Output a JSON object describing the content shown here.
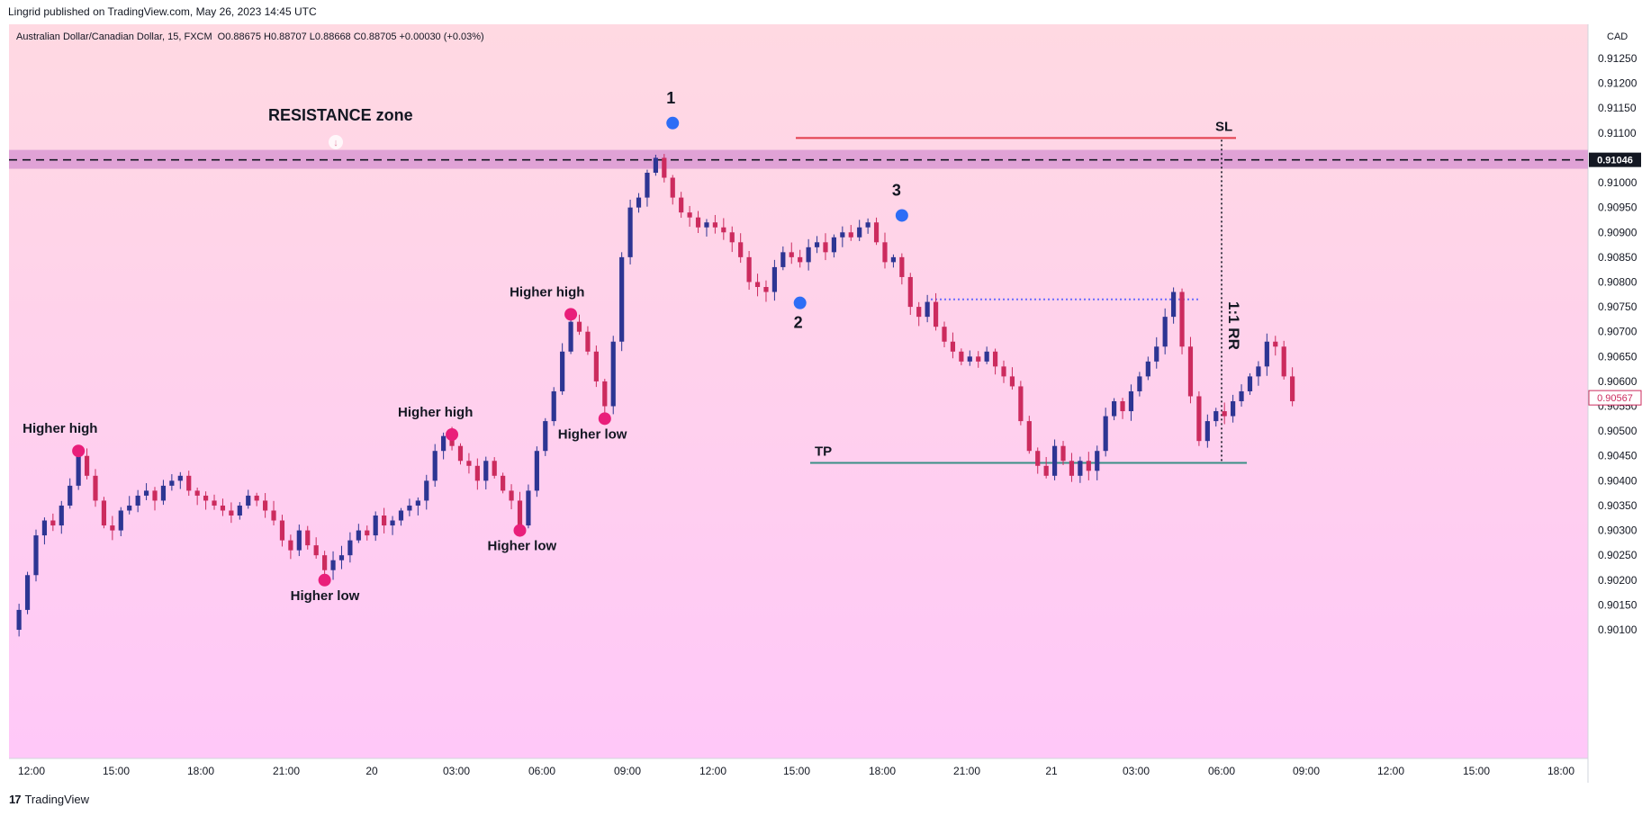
{
  "header": {
    "published": "Lingrid published on TradingView.com, May 26, 2023 14:45 UTC",
    "symbol": "Australian Dollar/Canadian Dollar, 15, FXCM",
    "ohlc": "O0.88675 H0.88707 L0.88668 C0.88705 +0.00030 (+0.03%)"
  },
  "footer": {
    "brand": "TradingView",
    "logo": "17"
  },
  "colors": {
    "up": "#2d3593",
    "down": "#cc2b5e",
    "zone": "#c778c8",
    "sl": "#e23b4a",
    "tp": "#3a8f86",
    "entry_dots": "#6b6bff",
    "marker_pink": "#e91e7a",
    "marker_blue": "#2d6df6",
    "bg_top": "#ffd9e2",
    "bg_bottom": "#ffc8f8"
  },
  "chart_data": {
    "type": "candlestick",
    "currency": "CAD",
    "ylim": [
      0.9006,
      0.9136
    ],
    "y_ticks": [
      "0.91250",
      "0.91200",
      "0.91150",
      "0.91100",
      "0.91050",
      "0.91000",
      "0.90950",
      "0.90900",
      "0.90850",
      "0.90800",
      "0.90750",
      "0.90700",
      "0.90650",
      "0.90600",
      "0.90550",
      "0.90500",
      "0.90450",
      "0.90400",
      "0.90350",
      "0.90300",
      "0.90250",
      "0.90200",
      "0.90150",
      "0.90100"
    ],
    "x_ticks": [
      "12:00",
      "15:00",
      "18:00",
      "21:00",
      "20",
      "03:00",
      "06:00",
      "09:00",
      "12:00",
      "15:00",
      "18:00",
      "21:00",
      "21",
      "03:00",
      "06:00",
      "09:00",
      "12:00",
      "15:00",
      "18:00"
    ],
    "resistance_level": "0.91046",
    "last_price": "0.90567",
    "resistance_band": [
      0.91028,
      0.91066
    ],
    "sl": 0.9109,
    "entry": 0.90765,
    "tp": 0.90436,
    "path": [
      0.901,
      0.9014,
      0.9021,
      0.9029,
      0.9032,
      0.9031,
      0.9035,
      0.9039,
      0.9045,
      0.9041,
      0.9036,
      0.9031,
      0.903,
      0.9034,
      0.9035,
      0.9037,
      0.9038,
      0.9036,
      0.9039,
      0.904,
      0.9041,
      0.9038,
      0.9037,
      0.9036,
      0.9035,
      0.9034,
      0.9033,
      0.9035,
      0.9037,
      0.9036,
      0.9034,
      0.9032,
      0.9028,
      0.9026,
      0.903,
      0.9027,
      0.9025,
      0.9022,
      0.9024,
      0.9025,
      0.9028,
      0.903,
      0.9029,
      0.9033,
      0.9031,
      0.9032,
      0.9034,
      0.9035,
      0.9036,
      0.904,
      0.9046,
      0.9049,
      0.9047,
      0.9044,
      0.9043,
      0.904,
      0.9044,
      0.9041,
      0.9038,
      0.9036,
      0.9031,
      0.9038,
      0.9046,
      0.9052,
      0.9058,
      0.9066,
      0.9072,
      0.907,
      0.9066,
      0.906,
      0.9055,
      0.9068,
      0.9085,
      0.9095,
      0.9097,
      0.9102,
      0.9105,
      0.9101,
      0.9097,
      0.9094,
      0.9093,
      0.9091,
      0.9092,
      0.9091,
      0.909,
      0.9088,
      0.9085,
      0.908,
      0.9079,
      0.9078,
      0.9083,
      0.9086,
      0.9085,
      0.9084,
      0.9087,
      0.9088,
      0.9086,
      0.9089,
      0.909,
      0.9089,
      0.9091,
      0.9092,
      0.9088,
      0.9084,
      0.9085,
      0.9081,
      0.9075,
      0.9073,
      0.9076,
      0.9071,
      0.9068,
      0.9066,
      0.9064,
      0.9065,
      0.9064,
      0.9066,
      0.9063,
      0.9061,
      0.9059,
      0.9052,
      0.9046,
      0.9043,
      0.9041,
      0.9047,
      0.9044,
      0.9041,
      0.9044,
      0.9042,
      0.9046,
      0.9053,
      0.9056,
      0.9054,
      0.9058,
      0.9061,
      0.9064,
      0.9067,
      0.9073,
      0.9078,
      0.9067,
      0.9057,
      0.9048,
      0.9052,
      0.9054,
      0.9053,
      0.9056,
      0.9058,
      0.9061,
      0.9063,
      0.9068,
      0.9067,
      0.9061,
      0.9056
    ],
    "texts": {
      "zone": "RESISTANCE zone",
      "sl": "SL",
      "tp": "TP",
      "rr": "1:1 RR",
      "p1": "1",
      "p2": "2",
      "p3": "3"
    },
    "annotations": [
      {
        "label": "Higher high",
        "candle": 8,
        "value": 0.9046
      },
      {
        "label": "Higher low",
        "candle": 37,
        "value": 0.902
      },
      {
        "label": "Higher high",
        "candle": 52,
        "value": 0.90493
      },
      {
        "label": "Higher low",
        "candle": 60,
        "value": 0.903
      },
      {
        "label": "Higher high",
        "candle": 66,
        "value": 0.90735
      },
      {
        "label": "Higher low",
        "candle": 70,
        "value": 0.90525
      }
    ]
  }
}
